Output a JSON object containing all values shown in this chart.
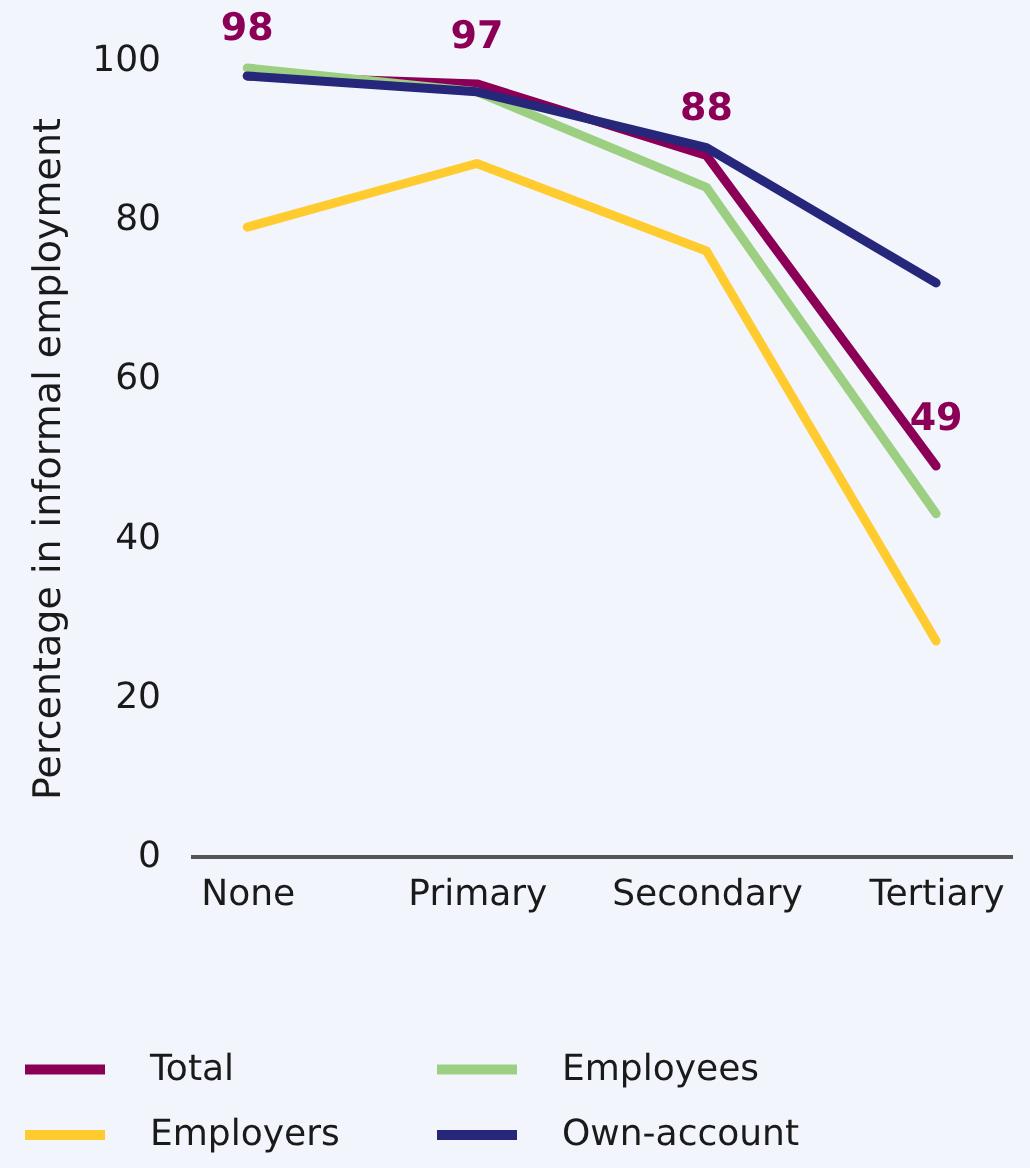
{
  "chart_data": {
    "type": "line",
    "ylabel": "Percentage in informal employment",
    "categories": [
      "None",
      "Primary",
      "Secondary",
      "Tertiary"
    ],
    "ylim": [
      0,
      100
    ],
    "yticks": [
      0,
      20,
      40,
      60,
      80,
      100
    ],
    "grid": false,
    "legend": "bottom",
    "series": [
      {
        "name": "Total",
        "color": "#8b0056",
        "values": [
          98,
          97,
          88,
          49
        ],
        "value_labels": [
          "98",
          "97",
          "88",
          "49"
        ]
      },
      {
        "name": "Employers",
        "color": "#ffcb2f",
        "values": [
          79,
          87,
          76,
          27
        ]
      },
      {
        "name": "Employees",
        "color": "#9ccf82",
        "values": [
          99,
          96,
          84,
          43
        ]
      },
      {
        "name": "Own-account",
        "color": "#26267a",
        "values": [
          98,
          96,
          89,
          72
        ]
      }
    ]
  }
}
